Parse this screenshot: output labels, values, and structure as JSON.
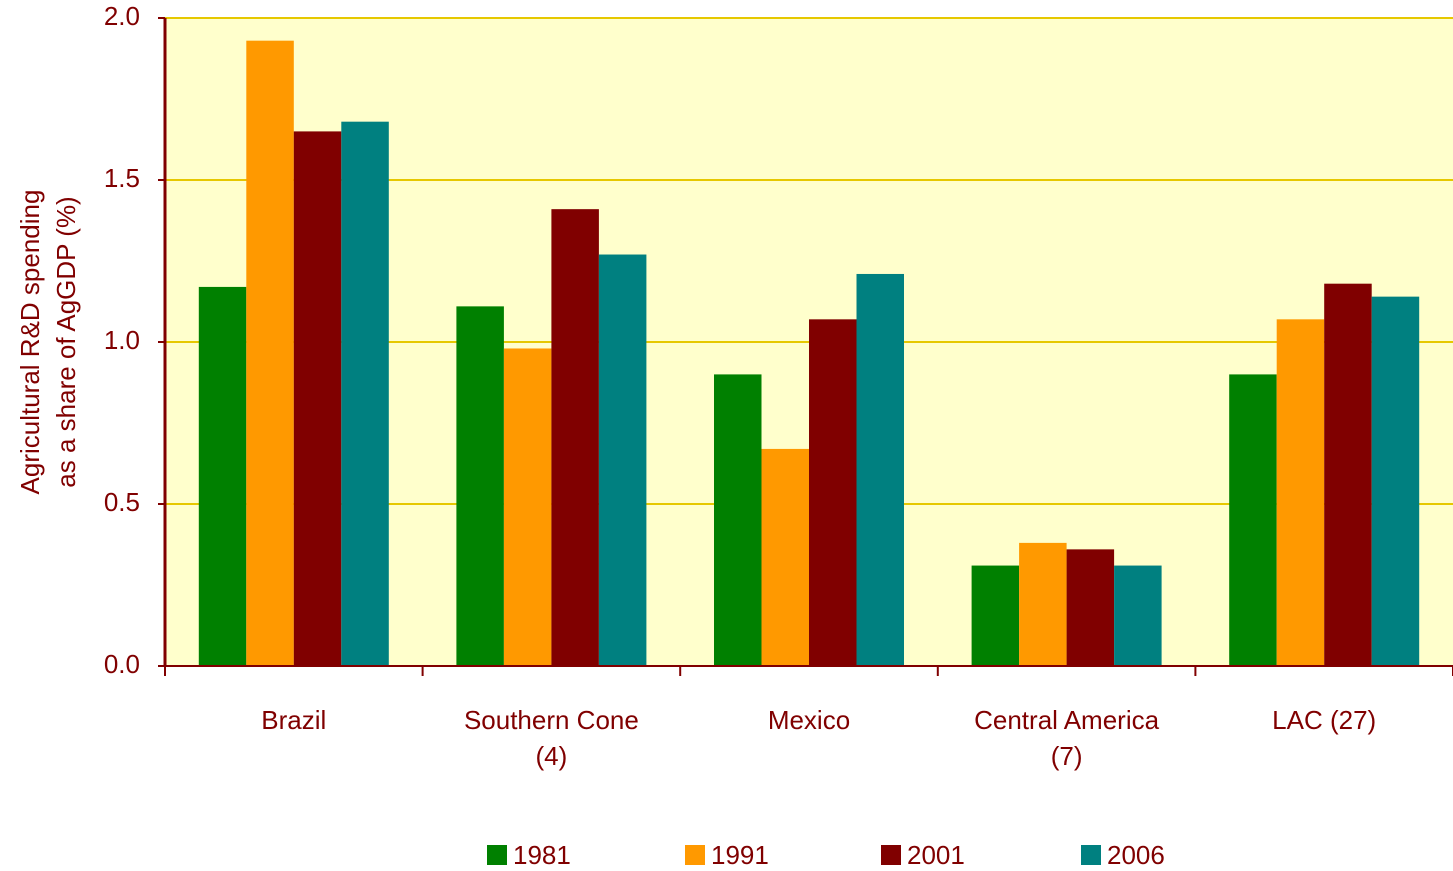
{
  "chart_data": {
    "type": "bar",
    "categories": [
      "Brazil",
      "Southern Cone\n(4)",
      "Mexico",
      "Central America\n(7)",
      "LAC (27)"
    ],
    "y_label": "Agricultural R&D spending\nas a share of AgGDP (%)",
    "series": [
      {
        "name": "1981",
        "color": "#008000",
        "values": [
          1.17,
          1.11,
          0.9,
          0.31,
          0.9
        ]
      },
      {
        "name": "1991",
        "color": "#FF9900",
        "values": [
          1.93,
          0.98,
          0.67,
          0.38,
          1.07
        ]
      },
      {
        "name": "2001",
        "color": "#800000",
        "values": [
          1.65,
          1.41,
          1.07,
          0.36,
          1.18
        ]
      },
      {
        "name": "2006",
        "color": "#008080",
        "values": [
          1.68,
          1.27,
          1.21,
          0.31,
          1.14
        ]
      }
    ],
    "ylim": [
      0,
      2
    ],
    "yticks": [
      {
        "value": 0,
        "label": "0.0"
      },
      {
        "value": 0.5,
        "label": "0.5"
      },
      {
        "value": 1,
        "label": "1.0"
      },
      {
        "value": 1.5,
        "label": "1.5"
      },
      {
        "value": 2,
        "label": "2.0"
      }
    ],
    "grid": true,
    "legend": "bottom"
  }
}
